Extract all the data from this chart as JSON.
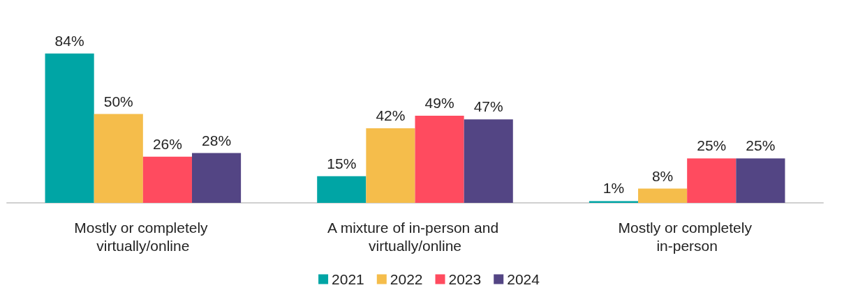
{
  "chart_data": {
    "type": "bar",
    "categories": [
      "Mostly or completely virtually/online",
      "A mixture of in-person and virtually/online",
      "Mostly or completely in-person"
    ],
    "series": [
      {
        "name": "2021",
        "color": "#00a5a5",
        "values": [
          84,
          15,
          1
        ],
        "value_labels": [
          "84%",
          "15%",
          "1%"
        ]
      },
      {
        "name": "2022",
        "color": "#f5bd4b",
        "values": [
          50,
          42,
          8
        ],
        "value_labels": [
          "50%",
          "42%",
          "8%"
        ]
      },
      {
        "name": "2023",
        "color": "#ff4b5f",
        "values": [
          26,
          49,
          25
        ],
        "value_labels": [
          "26%",
          "49%",
          "25%"
        ]
      },
      {
        "name": "2024",
        "color": "#534584",
        "values": [
          28,
          47,
          25
        ],
        "value_labels": [
          "28%",
          "47%",
          "25%"
        ]
      }
    ],
    "legend": "bottom"
  }
}
